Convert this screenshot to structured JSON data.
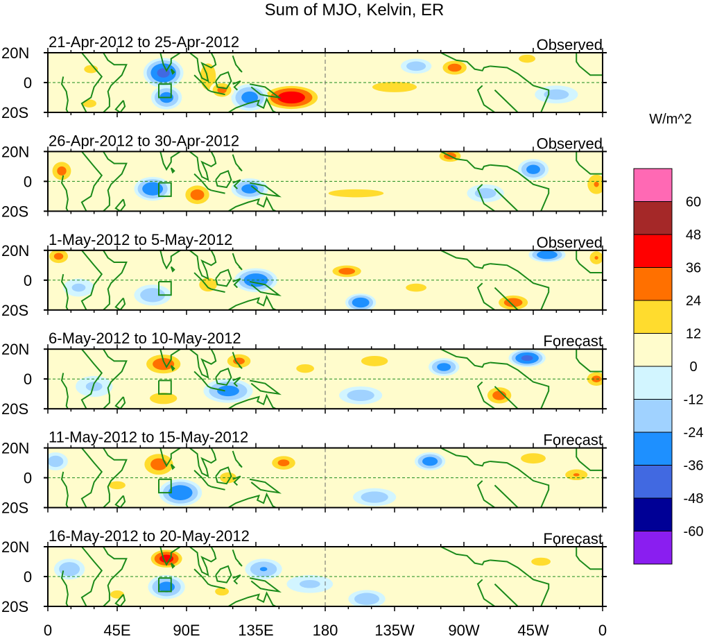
{
  "title": "Sum of MJO, Kelvin, ER",
  "colorbar": {
    "units": "W/m^2",
    "labels": [
      "60",
      "48",
      "36",
      "24",
      "12",
      "0",
      "-12",
      "-24",
      "-36",
      "-48",
      "-60"
    ],
    "colors": [
      "#ff69b4",
      "#a52828",
      "#ff0000",
      "#ff7000",
      "#ffdc2e",
      "#fffccc",
      "#d2f5ff",
      "#a0d2ff",
      "#1e90ff",
      "#4169e1",
      "#000096",
      "#8a1ef0"
    ]
  },
  "chart_data": {
    "type": "heatmap",
    "title": "Sum of MJO, Kelvin, ER",
    "units": "W/m^2",
    "levels": [
      -60,
      -48,
      -36,
      -24,
      -12,
      0,
      12,
      24,
      36,
      48,
      60
    ],
    "x_ticks": [
      "0",
      "45E",
      "90E",
      "135E",
      "180",
      "135W",
      "90W",
      "45W",
      "0"
    ],
    "y_ticks": [
      "20N",
      "0",
      "20S"
    ],
    "xlim": [
      0,
      360
    ],
    "ylim": [
      -20,
      20
    ],
    "panels": [
      {
        "period": "21-Apr-2012 to 25-Apr-2012",
        "status": "Observed",
        "anomalies": [
          [
            75,
            6.5,
            -40,
            13,
            10
          ],
          [
            77,
            -10,
            -30,
            10,
            8
          ],
          [
            158,
            -10,
            45,
            20,
            9
          ],
          [
            131,
            -10,
            -30,
            12,
            9
          ],
          [
            104,
            4,
            20,
            8,
            14
          ],
          [
            113,
            -5,
            28,
            8,
            6
          ],
          [
            225,
            -3,
            18,
            25,
            6
          ],
          [
            264,
            10,
            30,
            10,
            6
          ],
          [
            311,
            16,
            15,
            12,
            6
          ],
          [
            239,
            11,
            -20,
            10,
            5
          ],
          [
            28,
            9,
            15,
            10,
            6
          ],
          [
            27,
            -14,
            15,
            10,
            6
          ],
          [
            330,
            -8,
            -18,
            14,
            6
          ],
          [
            190,
            12,
            12,
            20,
            5
          ]
        ]
      },
      {
        "period": "26-Apr-2012 to 30-Apr-2012",
        "status": "Observed",
        "anomalies": [
          [
            9,
            7,
            28,
            8,
            8
          ],
          [
            68,
            -5,
            -35,
            12,
            8
          ],
          [
            97,
            -9,
            30,
            10,
            8
          ],
          [
            131,
            -5,
            -30,
            12,
            7
          ],
          [
            261,
            17,
            30,
            9,
            5
          ],
          [
            315,
            8,
            -30,
            10,
            7
          ],
          [
            356,
            -2,
            25,
            8,
            9
          ],
          [
            200,
            -8,
            15,
            40,
            6
          ],
          [
            212,
            14,
            12,
            30,
            5
          ],
          [
            284,
            -8,
            -18,
            12,
            6
          ],
          [
            40,
            -12,
            12,
            12,
            6
          ]
        ]
      },
      {
        "period": "1-May-2012 to 5-May-2012",
        "status": "Observed",
        "anomalies": [
          [
            7,
            16,
            28,
            8,
            6
          ],
          [
            135,
            0,
            -35,
            14,
            8
          ],
          [
            194,
            6,
            30,
            12,
            5
          ],
          [
            203,
            -15,
            -35,
            10,
            6
          ],
          [
            302,
            -15,
            32,
            12,
            6
          ],
          [
            324,
            17,
            -35,
            12,
            5
          ],
          [
            104,
            -3,
            18,
            10,
            8
          ],
          [
            68,
            -10,
            -22,
            12,
            7
          ],
          [
            356,
            15,
            25,
            6,
            6
          ],
          [
            239,
            -5,
            15,
            15,
            6
          ],
          [
            20,
            -5,
            -15,
            10,
            6
          ],
          [
            160,
            12,
            12,
            20,
            5
          ]
        ]
      },
      {
        "period": "6-May-2012 to 10-May-2012",
        "status": "Forecast",
        "anomalies": [
          [
            75,
            10,
            32,
            14,
            8
          ],
          [
            124,
            12,
            28,
            10,
            6
          ],
          [
            117,
            -8,
            -30,
            16,
            8
          ],
          [
            75,
            -13,
            20,
            14,
            6
          ],
          [
            257,
            8,
            -30,
            10,
            6
          ],
          [
            311,
            14,
            -40,
            12,
            6
          ],
          [
            293,
            -11,
            30,
            10,
            7
          ],
          [
            356,
            0,
            28,
            8,
            6
          ],
          [
            212,
            12,
            18,
            15,
            6
          ],
          [
            167,
            7,
            18,
            10,
            5
          ],
          [
            203,
            -11,
            -20,
            14,
            6
          ],
          [
            30,
            -5,
            -15,
            12,
            7
          ]
        ]
      },
      {
        "period": "11-May-2012 to 15-May-2012",
        "status": "Forecast",
        "anomalies": [
          [
            72,
            9,
            30,
            12,
            9
          ],
          [
            86,
            -10,
            -35,
            14,
            9
          ],
          [
            153,
            10,
            28,
            10,
            6
          ],
          [
            248,
            11,
            -32,
            10,
            6
          ],
          [
            117,
            0,
            15,
            12,
            8
          ],
          [
            343,
            2,
            25,
            10,
            5
          ],
          [
            315,
            13,
            18,
            14,
            6
          ],
          [
            212,
            -13,
            -20,
            14,
            6
          ],
          [
            5,
            11,
            -20,
            8,
            6
          ],
          [
            45,
            -5,
            15,
            12,
            6
          ],
          [
            180,
            -3,
            12,
            18,
            6
          ]
        ]
      },
      {
        "period": "16-May-2012 to 20-May-2012",
        "status": "Forecast",
        "anomalies": [
          [
            77,
            12,
            42,
            12,
            7
          ],
          [
            77,
            -7,
            -30,
            12,
            8
          ],
          [
            14,
            5,
            -22,
            10,
            7
          ],
          [
            140,
            5,
            -25,
            12,
            7
          ],
          [
            207,
            -15,
            -22,
            12,
            6
          ],
          [
            113,
            -10,
            15,
            10,
            6
          ],
          [
            320,
            10,
            15,
            14,
            6
          ],
          [
            275,
            -10,
            12,
            14,
            6
          ],
          [
            45,
            -12,
            15,
            10,
            6
          ],
          [
            170,
            -5,
            -15,
            15,
            6
          ]
        ]
      }
    ]
  }
}
